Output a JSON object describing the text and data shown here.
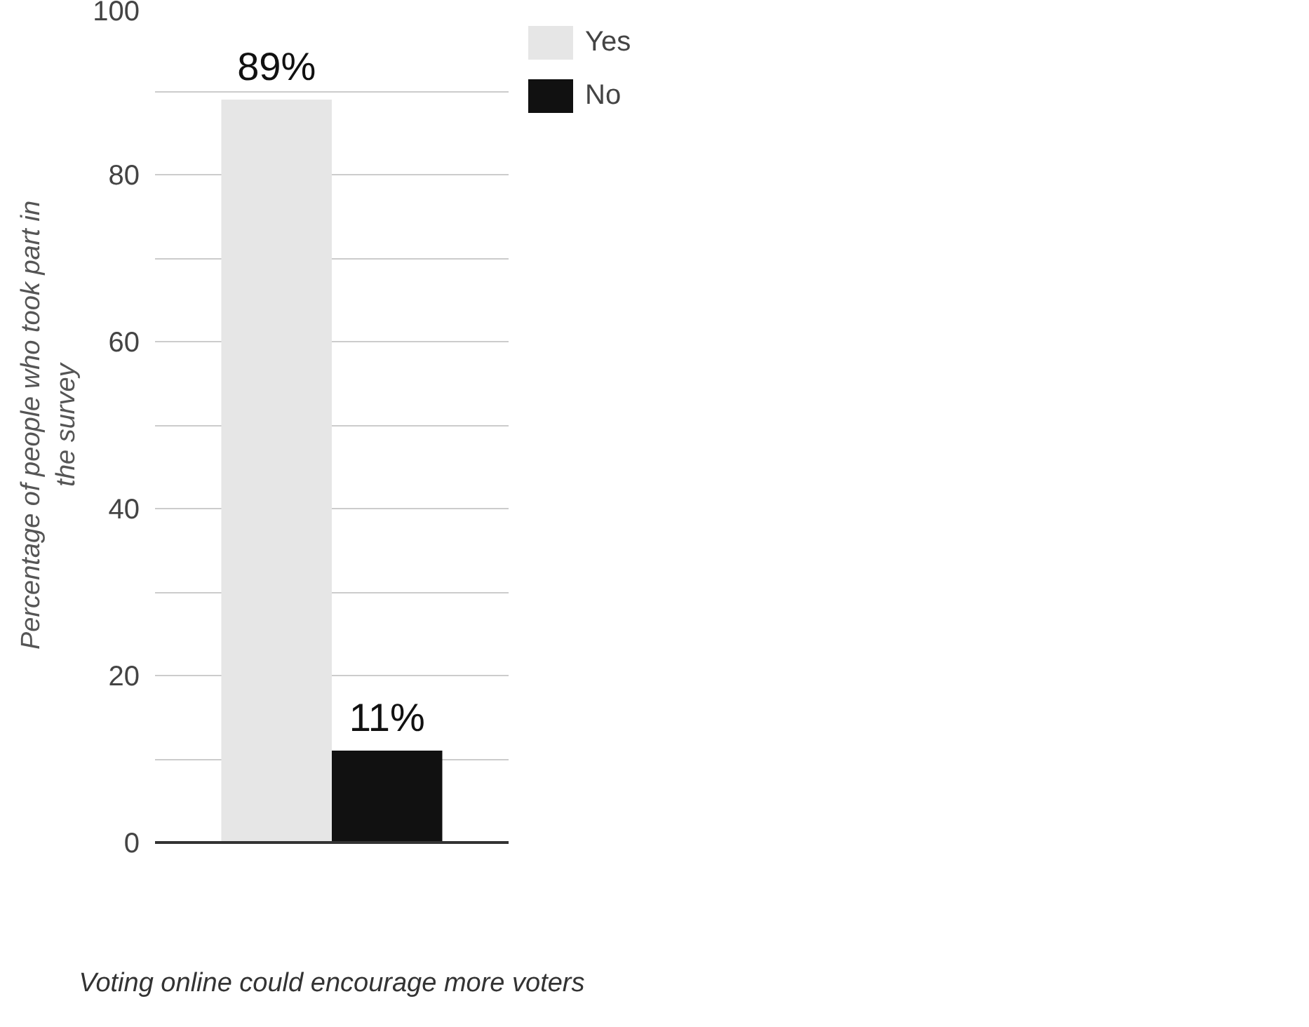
{
  "chart_data": {
    "type": "bar",
    "xlabel": "Voting online could encourage more voters",
    "ylabel": "Percentage of people who took part in the survey",
    "categories": [
      null
    ],
    "series": [
      {
        "name": "Yes",
        "color": "#e6e6e6",
        "values": [
          89
        ],
        "value_labels": [
          "89%"
        ]
      },
      {
        "name": "No",
        "color": "#111111",
        "values": [
          11
        ],
        "value_labels": [
          "11%"
        ]
      }
    ],
    "ylim": [
      0,
      100
    ],
    "yticks": [
      0,
      {
        "value": 10,
        "label": null
      },
      20,
      {
        "value": 30,
        "label": null
      },
      40,
      {
        "value": 50,
        "label": null
      },
      60,
      {
        "value": 70,
        "label": null
      },
      80,
      {
        "value": 90,
        "label": null
      },
      100
    ],
    "grid": "y",
    "legend": "top right"
  }
}
